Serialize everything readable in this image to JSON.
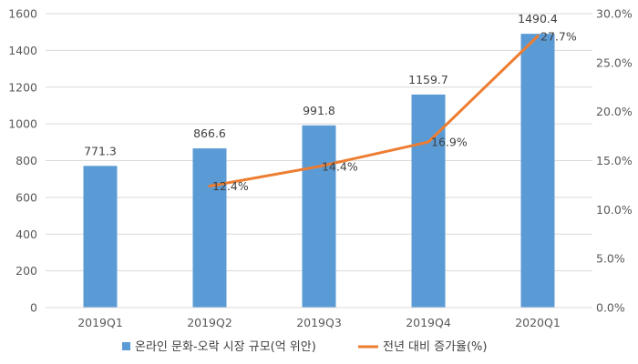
{
  "chart_data": {
    "type": "bar",
    "categories": [
      "2019Q1",
      "2019Q2",
      "2019Q3",
      "2019Q4",
      "2020Q1"
    ],
    "series": [
      {
        "name": "온라인 문화-오락 시장 규모(억 위안)",
        "type": "bar",
        "axis": "left",
        "color": "#5b9bd5",
        "values": [
          771.3,
          866.6,
          991.8,
          1159.7,
          1490.4
        ],
        "labels": [
          "771.3",
          "866.6",
          "991.8",
          "1159.7",
          "1490.4"
        ]
      },
      {
        "name": "전년 대비 증가율(%)",
        "type": "line",
        "axis": "right",
        "color": "#ed7d31",
        "values": [
          null,
          12.4,
          14.4,
          16.9,
          27.7
        ],
        "labels": [
          "",
          "12.4%",
          "14.4%",
          "16.9%",
          "27.7%"
        ]
      }
    ],
    "yaxis_left": {
      "ylim": [
        0,
        1600
      ],
      "ticks": [
        "0",
        "200",
        "400",
        "600",
        "800",
        "1000",
        "1200",
        "1400",
        "1600"
      ]
    },
    "yaxis_right": {
      "ylim": [
        0,
        30
      ],
      "ticks": [
        "0.0%",
        "5.0%",
        "10.0%",
        "15.0%",
        "20.0%",
        "25.0%",
        "30.0%"
      ]
    },
    "grid": true,
    "legend": "bottom"
  }
}
